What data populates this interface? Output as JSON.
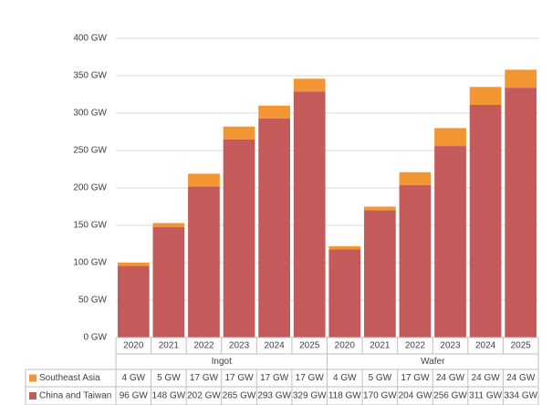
{
  "chart_data": {
    "type": "bar",
    "stacked": true,
    "categories": [
      "2020",
      "2021",
      "2022",
      "2023",
      "2024",
      "2025",
      "2020",
      "2021",
      "2022",
      "2023",
      "2024",
      "2025"
    ],
    "category_groups": [
      "Ingot",
      "Wafer"
    ],
    "series": [
      {
        "name": "Southeast Asia",
        "color": "#f39530",
        "values": [
          4,
          5,
          17,
          17,
          17,
          17,
          4,
          5,
          17,
          24,
          24,
          24
        ],
        "value_labels": [
          "4 GW",
          "5 GW",
          "17 GW",
          "17 GW",
          "17 GW",
          "17 GW",
          "4 GW",
          "5 GW",
          "17 GW",
          "24 GW",
          "24 GW",
          "24 GW"
        ]
      },
      {
        "name": "China and Taiwan",
        "color": "#c55a5a",
        "values": [
          96,
          148,
          202,
          265,
          293,
          329,
          118,
          170,
          204,
          256,
          311,
          334
        ],
        "value_labels": [
          "96 GW",
          "148 GW",
          "202 GW",
          "265 GW",
          "293 GW",
          "329 GW",
          "118 GW",
          "170 GW",
          "204 GW",
          "256 GW",
          "311 GW",
          "334 GW"
        ]
      }
    ],
    "ylim": [
      0,
      400
    ],
    "yticks": [
      {
        "value": 0,
        "label": "0 GW"
      },
      {
        "value": 50,
        "label": "50 GW"
      },
      {
        "value": 100,
        "label": "100 GW"
      },
      {
        "value": 150,
        "label": "150 GW"
      },
      {
        "value": 200,
        "label": "200 GW"
      },
      {
        "value": 250,
        "label": "250 GW"
      },
      {
        "value": 300,
        "label": "300 GW"
      },
      {
        "value": 350,
        "label": "350 GW"
      },
      {
        "value": 400,
        "label": "400 GW"
      }
    ],
    "grid": true
  }
}
